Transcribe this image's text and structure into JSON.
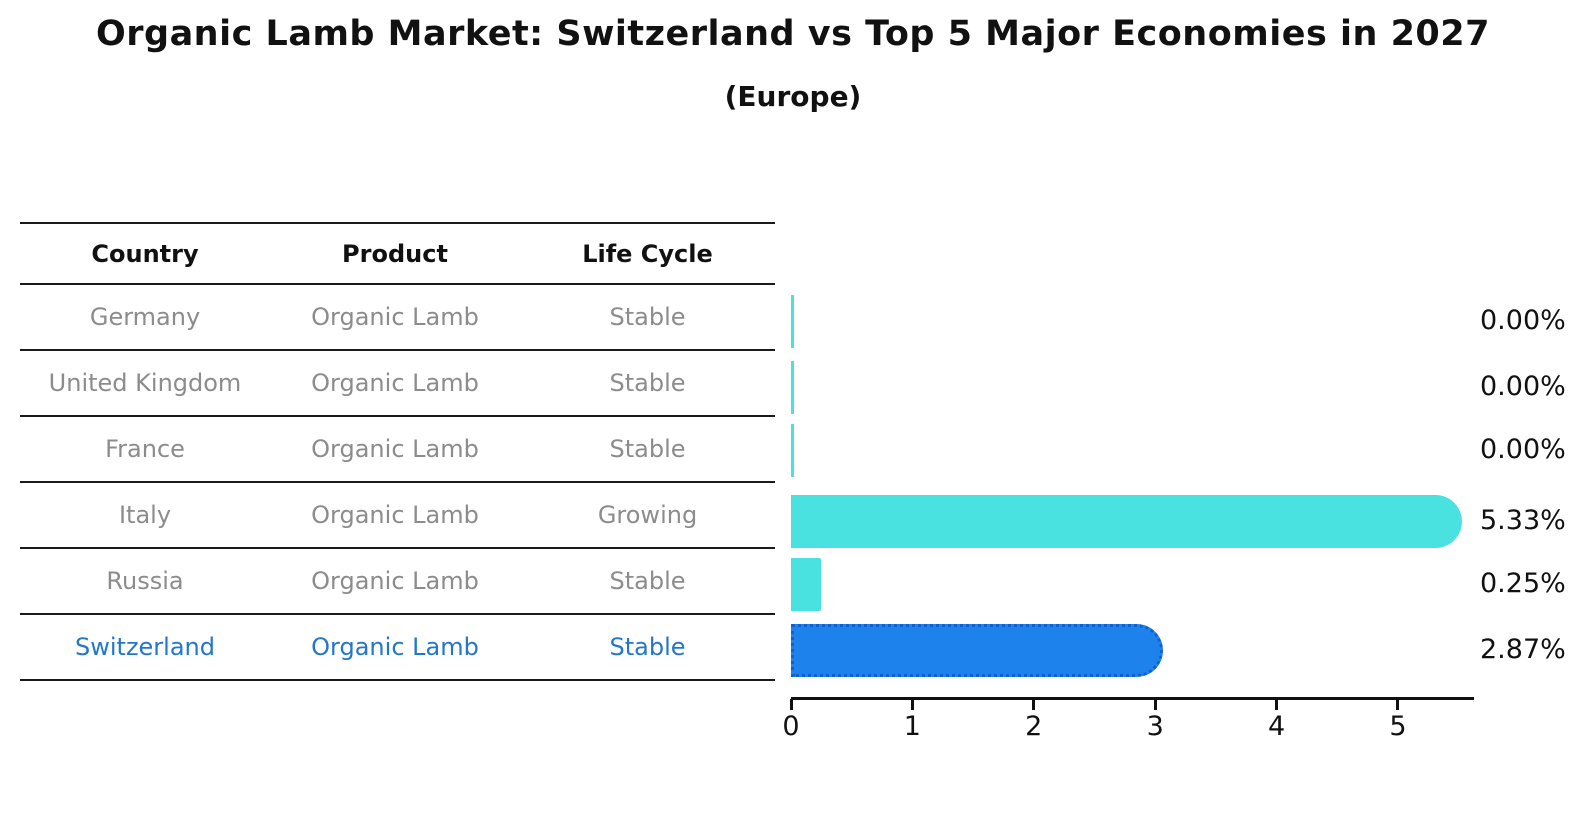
{
  "title": "Organic Lamb Market: Switzerland vs Top 5 Major Economies in 2027",
  "subtitle": "(Europe)",
  "table": {
    "columns": [
      "Country",
      "Product",
      "Life Cycle"
    ],
    "rows": [
      {
        "country": "Germany",
        "product": "Organic Lamb",
        "life_cycle": "Stable",
        "highlight": false
      },
      {
        "country": "United Kingdom",
        "product": "Organic Lamb",
        "life_cycle": "Stable",
        "highlight": false
      },
      {
        "country": "France",
        "product": "Organic Lamb",
        "life_cycle": "Stable",
        "highlight": false
      },
      {
        "country": "Italy",
        "product": "Organic Lamb",
        "life_cycle": "Growing",
        "highlight": false
      },
      {
        "country": "Russia",
        "product": "Organic Lamb",
        "life_cycle": "Stable",
        "highlight": false
      },
      {
        "country": "Switzerland",
        "product": "Organic Lamb",
        "life_cycle": "Stable",
        "highlight": true
      }
    ]
  },
  "chart_data": {
    "type": "bar",
    "orientation": "horizontal",
    "title": "Organic Lamb Market: Switzerland vs Top 5 Major Economies in 2027 (Europe)",
    "categories": [
      "Germany",
      "United Kingdom",
      "France",
      "Italy",
      "Russia",
      "Switzerland"
    ],
    "values": [
      0.0,
      0.0,
      0.0,
      5.33,
      0.25,
      2.87
    ],
    "value_labels": [
      "0.00%",
      "0.00%",
      "0.00%",
      "5.33%",
      "0.25%",
      "2.87%"
    ],
    "x_ticks": [
      "0",
      "1",
      "2",
      "3",
      "4",
      "5"
    ],
    "xlim": [
      0,
      5.61
    ],
    "grid": false,
    "legend": null,
    "highlight_index": 5
  },
  "colors": {
    "bar_default": "#4ae2e0",
    "bar_highlight": "#1e82ec",
    "bar_highlight_border": "#1060cd",
    "table_text": "#8c8c8c",
    "table_highlight_text": "#2277cb",
    "axis": "#111111"
  }
}
